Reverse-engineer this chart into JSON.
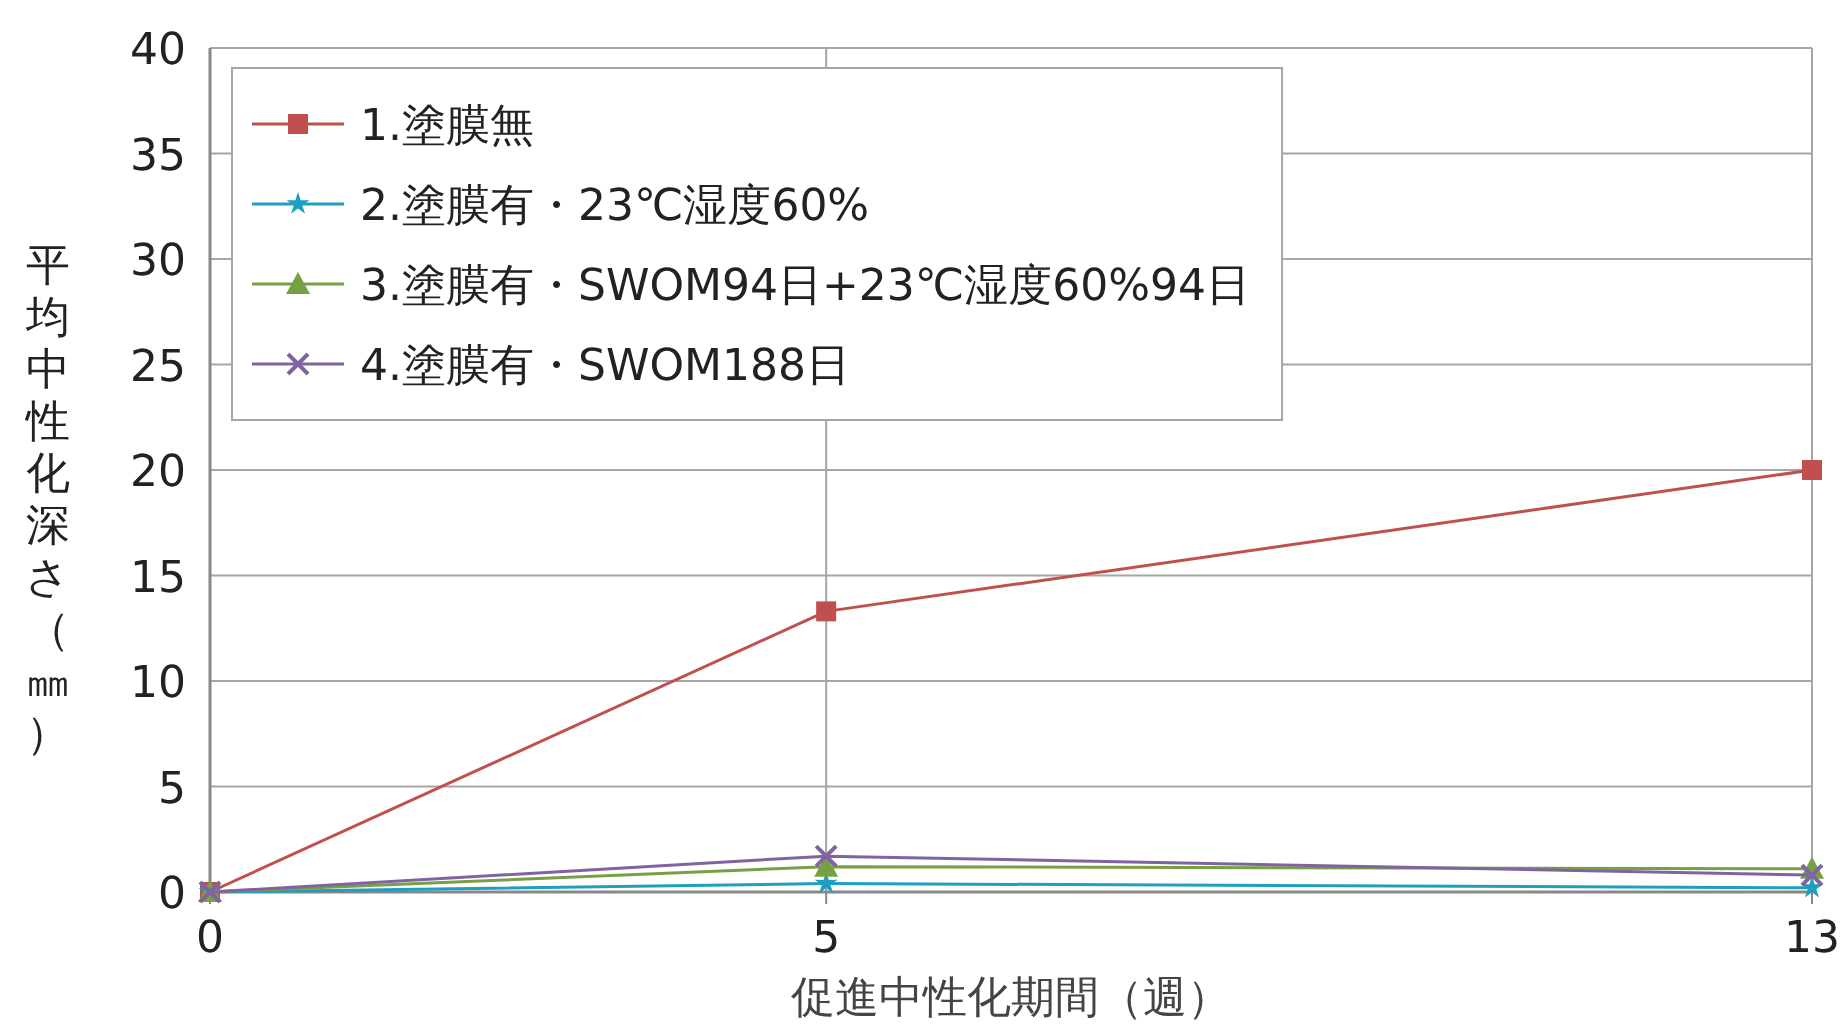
{
  "chart_data": {
    "type": "line",
    "xlabel": "促進中性化期間（週）",
    "ylabel": "平均中性化深さ（㎜）",
    "x": [
      0,
      5,
      13
    ],
    "xlim": [
      0,
      13
    ],
    "xticks": [
      0,
      5,
      13
    ],
    "ylim": [
      0,
      40
    ],
    "yticks": [
      0,
      5,
      10,
      15,
      20,
      25,
      30,
      35,
      40
    ],
    "grid": true,
    "legend": "top left",
    "series": [
      {
        "name": "1.塗膜無",
        "color": "#c0504d",
        "marker": "square",
        "values": [
          0,
          13.3,
          20
        ]
      },
      {
        "name": "2.塗膜有・23℃湿度60%",
        "color": "#1f9fbf",
        "marker": "star",
        "values": [
          0,
          0.4,
          0.2
        ]
      },
      {
        "name": "3.塗膜有・SWOM94日+23℃湿度60%94日",
        "color": "#77a045",
        "marker": "triangle",
        "values": [
          0,
          1.2,
          1.1
        ]
      },
      {
        "name": "4.塗膜有・SWOM188日",
        "color": "#8064a2",
        "marker": "cross",
        "values": [
          0,
          1.7,
          0.8
        ]
      }
    ]
  }
}
